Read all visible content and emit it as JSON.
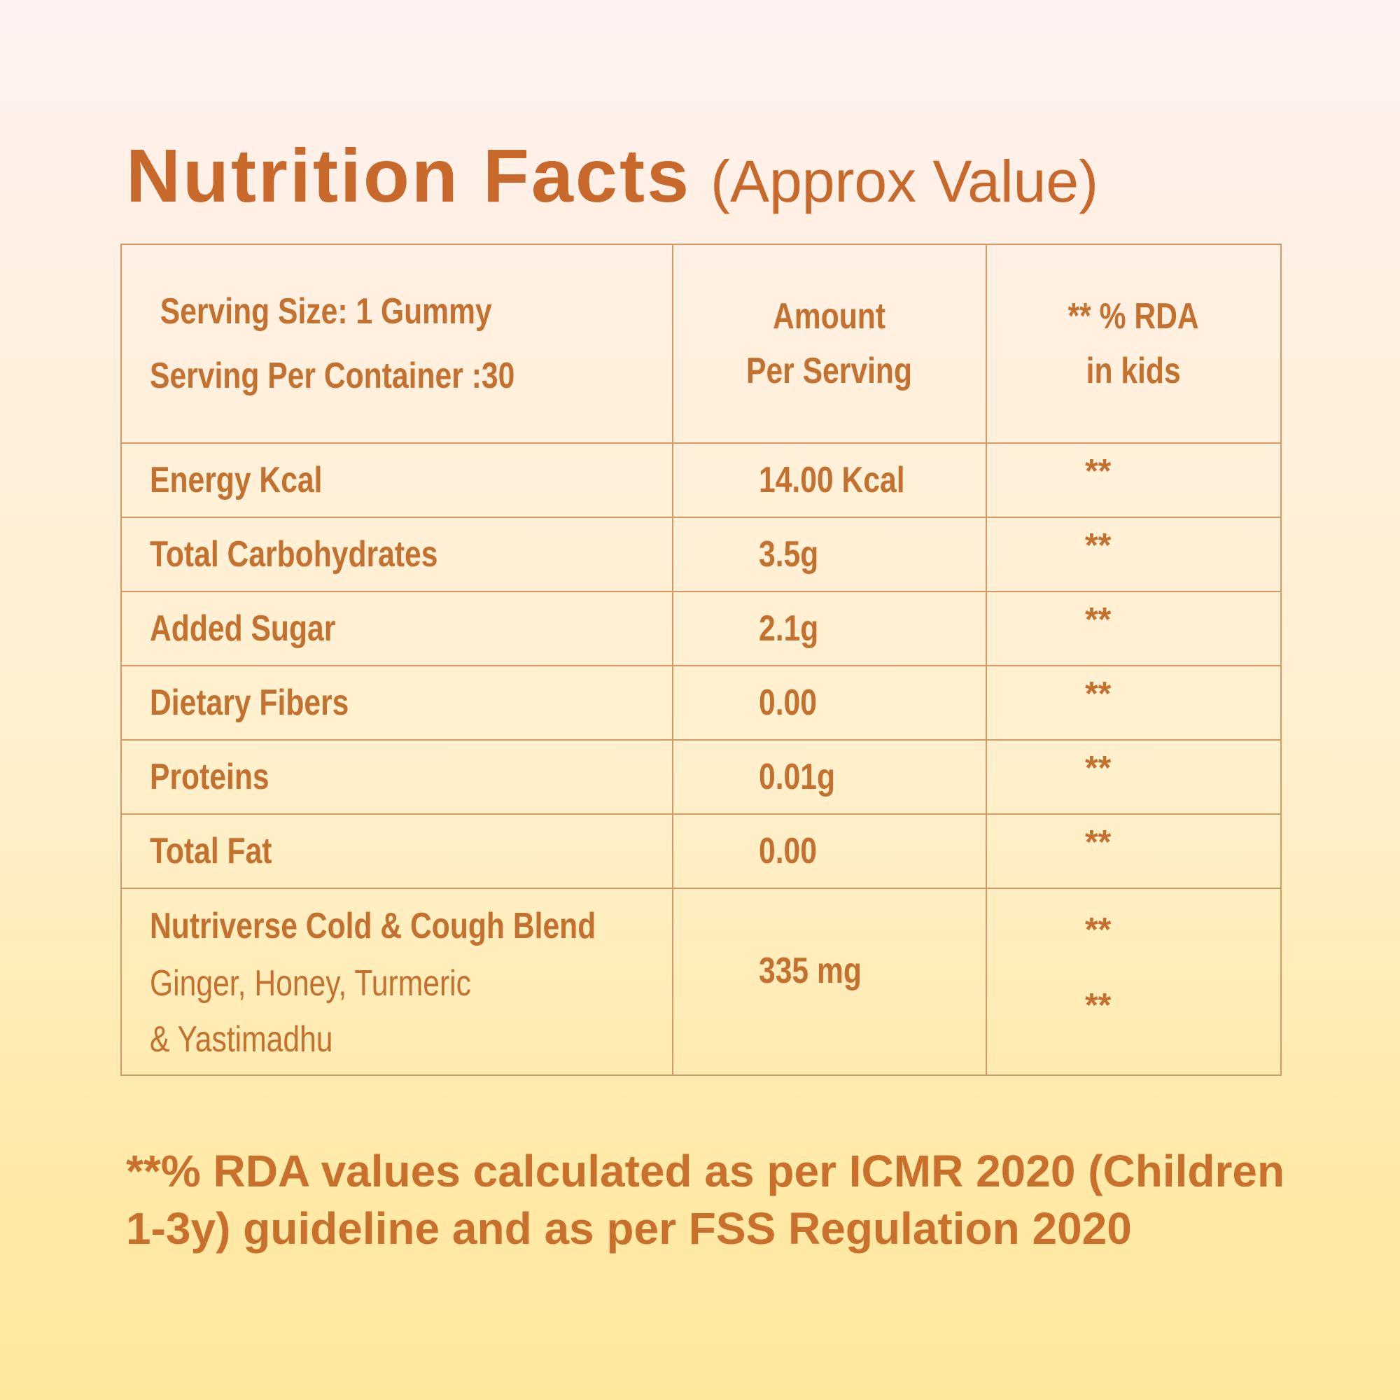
{
  "title": {
    "main": "Nutrition Facts",
    "sub": "(Approx Value)"
  },
  "header": {
    "serving_size": "Serving Size: 1 Gummy",
    "serving_per_container": "Serving Per Container :30",
    "amount_line1": "Amount",
    "amount_line2": "Per Serving",
    "rda_line1": "** % RDA",
    "rda_line2": "in kids"
  },
  "rows": [
    {
      "nutrient": "Energy Kcal",
      "amount": "14.00 Kcal",
      "rda": "**"
    },
    {
      "nutrient": "Total Carbohydrates",
      "amount": "3.5g",
      "rda": "**"
    },
    {
      "nutrient": "Added Sugar",
      "amount": "2.1g",
      "rda": "**"
    },
    {
      "nutrient": "Dietary Fibers",
      "amount": "0.00",
      "rda": "**"
    },
    {
      "nutrient": "Proteins",
      "amount": "0.01g",
      "rda": "**"
    },
    {
      "nutrient": "Total Fat",
      "amount": "0.00",
      "rda": "**"
    }
  ],
  "blend": {
    "name": "Nutriverse Cold & Cough  Blend",
    "ingredients_line1": "Ginger, Honey, Turmeric",
    "ingredients_line2": "& Yastimadhu",
    "amount": "335 mg",
    "rda_1": "**",
    "rda_2": "**"
  },
  "footnote": "**% RDA values calculated as per ICMR 2020 (Children 1-3y) guideline and as per FSS Regulation 2020"
}
